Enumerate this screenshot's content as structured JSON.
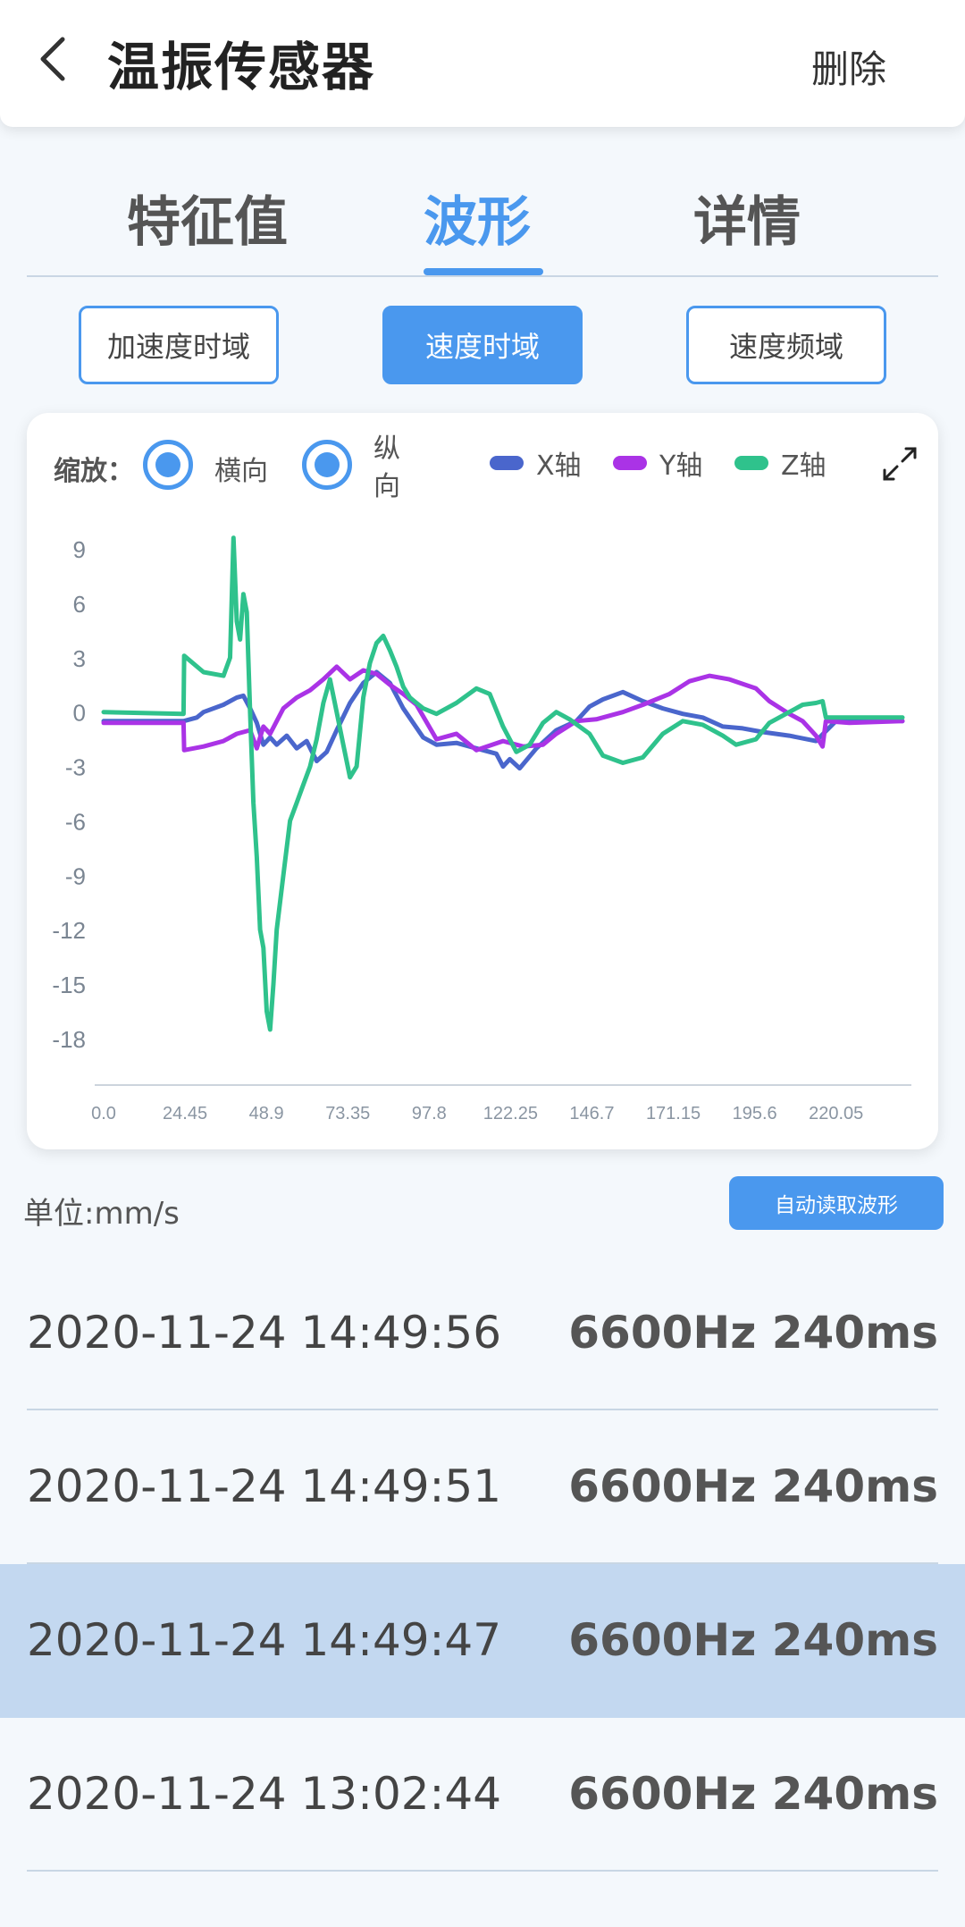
{
  "header": {
    "title": "温振传感器",
    "delete_label": "删除"
  },
  "tabs": [
    {
      "label": "特征值"
    },
    {
      "label": "波形"
    },
    {
      "label": "详情"
    }
  ],
  "subtabs": [
    {
      "label": "加速度时域"
    },
    {
      "label": "速度时域"
    },
    {
      "label": "速度频域"
    }
  ],
  "controls": {
    "zoom_label": "缩放：",
    "horizontal_label": "横向",
    "vertical_label": "纵\n向"
  },
  "unit_label": "单位:mm/s",
  "auto_read_label": "自动读取波形",
  "colors": {
    "accent": "#4a98ee",
    "x_axis": "#4a66cc",
    "y_axis": "#aa33e6",
    "z_axis": "#2fc28c",
    "selected_row": "#c3d8f0"
  },
  "chart_data": {
    "type": "line",
    "title": "",
    "xlabel": "",
    "ylabel": "",
    "x_ticks": [
      "0.0",
      "24.45",
      "48.9",
      "73.35",
      "97.8",
      "122.25",
      "146.7",
      "171.15",
      "195.6",
      "220.05"
    ],
    "y_ticks": [
      "9",
      "6",
      "3",
      "0",
      "-3",
      "-6",
      "-9",
      "-12",
      "-15",
      "-18"
    ],
    "xlim": [
      0,
      240
    ],
    "ylim": [
      -19,
      10
    ],
    "legend_placement": "top",
    "series": [
      {
        "name": "X轴",
        "color": "#4a66cc",
        "x": [
          0,
          24,
          28,
          30,
          36,
          40,
          42,
          44,
          46,
          48,
          50,
          52,
          55,
          58,
          61,
          64,
          67,
          70,
          74,
          78,
          82,
          86,
          90,
          96,
          100,
          106,
          112,
          118,
          120,
          122,
          125,
          130,
          136,
          142,
          146,
          150,
          156,
          162,
          168,
          174,
          180,
          186,
          192,
          198,
          206,
          214,
          220,
          230,
          240
        ],
        "y": [
          -0.5,
          -0.5,
          -0.3,
          0,
          0.4,
          0.8,
          0.9,
          0.2,
          -0.6,
          -1.8,
          -1.4,
          -1.8,
          -1.3,
          -2.0,
          -1.6,
          -2.7,
          -2.2,
          -1.0,
          0.5,
          1.6,
          2.2,
          1.6,
          0.2,
          -1.4,
          -1.8,
          -1.7,
          -2.0,
          -2.3,
          -3.0,
          -2.6,
          -3.1,
          -2.0,
          -1.0,
          -0.5,
          0.3,
          0.7,
          1.1,
          0.6,
          0.2,
          -0.1,
          -0.3,
          -0.8,
          -0.9,
          -1.1,
          -1.3,
          -1.6,
          -0.5,
          -0.4,
          -0.5
        ]
      },
      {
        "name": "Y轴",
        "color": "#aa33e6",
        "x": [
          0,
          24,
          24.2,
          30,
          36,
          40,
          44,
          46,
          48,
          50,
          54,
          58,
          62,
          66,
          70,
          74,
          78,
          82,
          86,
          90,
          94,
          100,
          106,
          112,
          120,
          126,
          132,
          136,
          142,
          148,
          156,
          162,
          170,
          176,
          182,
          188,
          196,
          200,
          206,
          210,
          214,
          216,
          217,
          224,
          240
        ],
        "y": [
          -0.6,
          -0.6,
          -2.1,
          -1.9,
          -1.6,
          -1.2,
          -1.0,
          -2.0,
          -0.8,
          -1.2,
          0.2,
          0.8,
          1.2,
          1.8,
          2.5,
          1.8,
          2.3,
          2.1,
          1.5,
          1.0,
          0.4,
          -1.5,
          -1.2,
          -2.1,
          -1.6,
          -1.9,
          -1.8,
          -1.2,
          -0.5,
          -0.4,
          0.0,
          0.4,
          1.0,
          1.7,
          2.0,
          1.8,
          1.3,
          0.6,
          -0.1,
          -0.5,
          -1.3,
          -1.9,
          -0.5,
          -0.6,
          -0.5
        ]
      },
      {
        "name": "Z轴",
        "color": "#2fc28c",
        "x": [
          0,
          24,
          24.2,
          30,
          36,
          38,
          39,
          40,
          41,
          42,
          43,
          44,
          45,
          46,
          47,
          48,
          49,
          50,
          51,
          52,
          54,
          56,
          58,
          60,
          62,
          64,
          66,
          68,
          70,
          72,
          74,
          76,
          78,
          80,
          82,
          84,
          86,
          88,
          90,
          92,
          94,
          96,
          100,
          106,
          112,
          116,
          120,
          124,
          128,
          132,
          136,
          140,
          146,
          150,
          156,
          162,
          168,
          174,
          180,
          186,
          190,
          196,
          200,
          206,
          210,
          214,
          216,
          217,
          224,
          240
        ],
        "y": [
          0.0,
          -0.1,
          3.1,
          2.2,
          2.0,
          3.0,
          9.6,
          5.0,
          4.0,
          6.5,
          5.5,
          0.0,
          -5.0,
          -8.0,
          -12.0,
          -13.0,
          -16.5,
          -17.5,
          -15.0,
          -12.0,
          -9.0,
          -6.0,
          -5.0,
          -4.0,
          -3.0,
          -1.5,
          0.5,
          1.8,
          0.0,
          -1.8,
          -3.6,
          -3.0,
          0.8,
          2.7,
          3.8,
          4.2,
          3.4,
          2.5,
          1.4,
          0.8,
          0.5,
          0.2,
          -0.1,
          0.5,
          1.3,
          1.0,
          -0.8,
          -2.2,
          -1.8,
          -0.6,
          0.0,
          -0.4,
          -1.2,
          -2.4,
          -2.8,
          -2.5,
          -1.2,
          -0.5,
          -0.7,
          -1.3,
          -1.8,
          -1.5,
          -0.6,
          0.0,
          0.4,
          0.5,
          0.6,
          -0.3,
          -0.3,
          -0.3
        ]
      }
    ]
  },
  "records": [
    {
      "time": "2020-11-24 14:49:56",
      "info": "6600Hz 240ms",
      "selected": false
    },
    {
      "time": "2020-11-24 14:49:51",
      "info": "6600Hz 240ms",
      "selected": false
    },
    {
      "time": "2020-11-24 14:49:47",
      "info": "6600Hz 240ms",
      "selected": true
    },
    {
      "time": "2020-11-24 13:02:44",
      "info": "6600Hz 240ms",
      "selected": false
    }
  ]
}
